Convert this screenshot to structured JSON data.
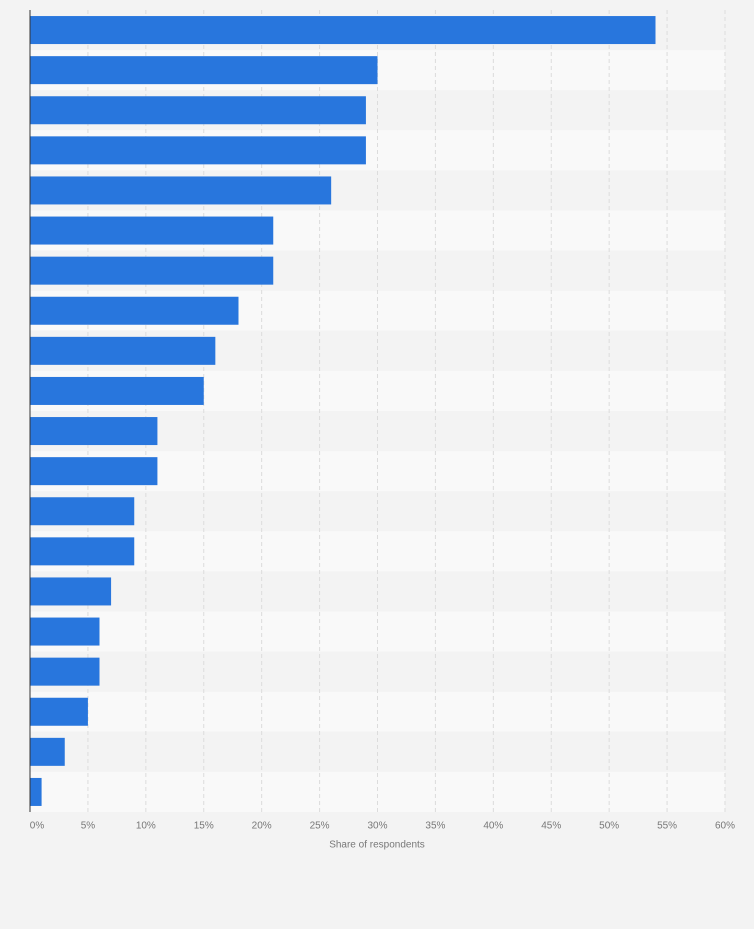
{
  "chart_data": {
    "type": "bar",
    "orientation": "horizontal",
    "x_axis_label": "Share of respondents",
    "categories": [
      null,
      null,
      null,
      null,
      null,
      null,
      null,
      null,
      null,
      null,
      null,
      null,
      null,
      null,
      null,
      null,
      null,
      null,
      null,
      null
    ],
    "values": [
      54,
      30,
      29,
      29,
      26,
      21,
      21,
      18,
      16,
      15,
      11,
      11,
      9,
      9,
      7,
      6,
      6,
      5,
      3,
      1
    ],
    "color": "#2876dd",
    "xlim": [
      0,
      60
    ],
    "xticks": [
      {
        "value": 0,
        "label": "0%"
      },
      {
        "value": 5,
        "label": "5%"
      },
      {
        "value": 10,
        "label": "10%"
      },
      {
        "value": 15,
        "label": "15%"
      },
      {
        "value": 20,
        "label": "20%"
      },
      {
        "value": 25,
        "label": "25%"
      },
      {
        "value": 30,
        "label": "30%"
      },
      {
        "value": 35,
        "label": "35%"
      },
      {
        "value": 40,
        "label": "40%"
      },
      {
        "value": 45,
        "label": "45%"
      },
      {
        "value": 50,
        "label": "50%"
      },
      {
        "value": 55,
        "label": "55%"
      },
      {
        "value": 60,
        "label": "60%"
      }
    ],
    "grid": true
  }
}
